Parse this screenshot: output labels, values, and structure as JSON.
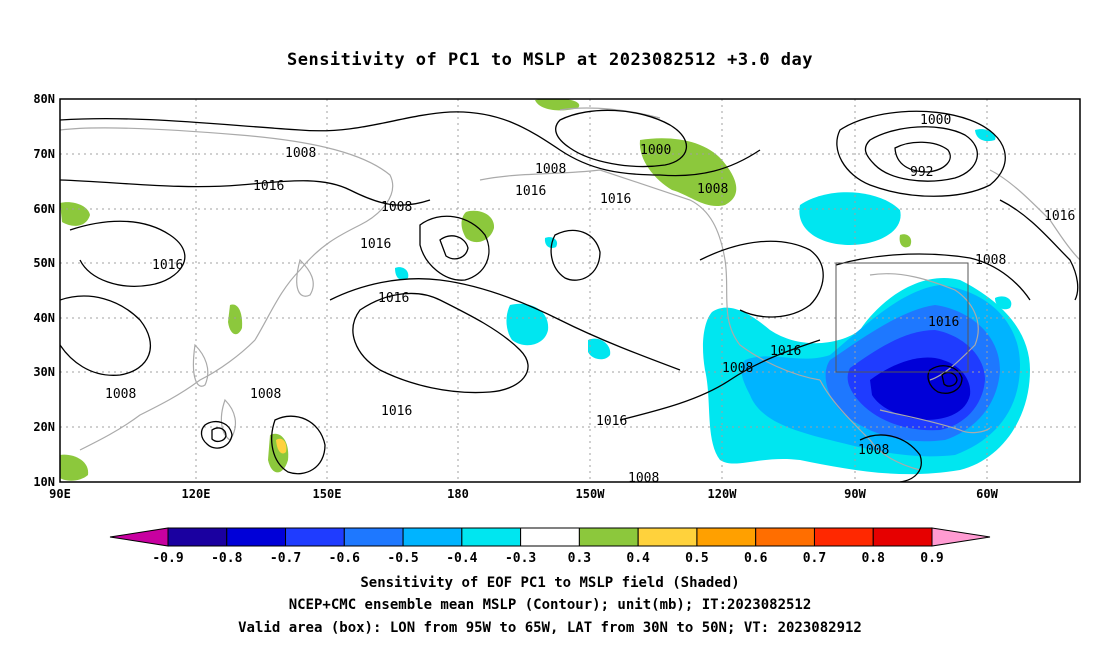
{
  "title": "Sensitivity of PC1 to MSLP at 2023082512 +3.0 day",
  "captions": {
    "line1": "Sensitivity of EOF PC1 to MSLP field (Shaded)",
    "line2": "NCEP+CMC ensemble mean MSLP (Contour); unit(mb); IT:2023082512",
    "line3": "Valid area (box): LON from 95W to 65W, LAT from 30N to 50N; VT: 2023082912"
  },
  "map": {
    "lat_labels": [
      "80N",
      "70N",
      "60N",
      "50N",
      "40N",
      "30N",
      "20N",
      "10N"
    ],
    "lon_labels": [
      "90E",
      "120E",
      "150E",
      "180",
      "150W",
      "120W",
      "90W",
      "60W"
    ],
    "contour_labels": [
      "1008",
      "1016",
      "1016",
      "1008",
      "1008",
      "1016",
      "1016",
      "1008",
      "1016",
      "1008",
      "1000",
      "1016",
      "1016",
      "1008",
      "1000",
      "992",
      "1016",
      "1016",
      "1008",
      "1016",
      "1008",
      "1008",
      "1016",
      "1008"
    ],
    "valid_box": {
      "lon": "95W to 65W",
      "lat": "30N to 50N"
    }
  },
  "colorbar": {
    "labels": [
      "-0.9",
      "-0.8",
      "-0.7",
      "-0.6",
      "-0.5",
      "-0.4",
      "-0.3",
      "0.3",
      "0.4",
      "0.5",
      "0.6",
      "0.7",
      "0.8",
      "0.9"
    ],
    "colors": [
      "#1a00a0",
      "#0000d8",
      "#1f3cff",
      "#1e78ff",
      "#00b4ff",
      "#00e6f0",
      "#ffffff",
      "#8cc83c",
      "#ffd23c",
      "#ffa000",
      "#ff6e00",
      "#ff2800",
      "#e60000"
    ],
    "low_cap": "#c800a0",
    "high_cap": "#ff9bd2"
  }
}
